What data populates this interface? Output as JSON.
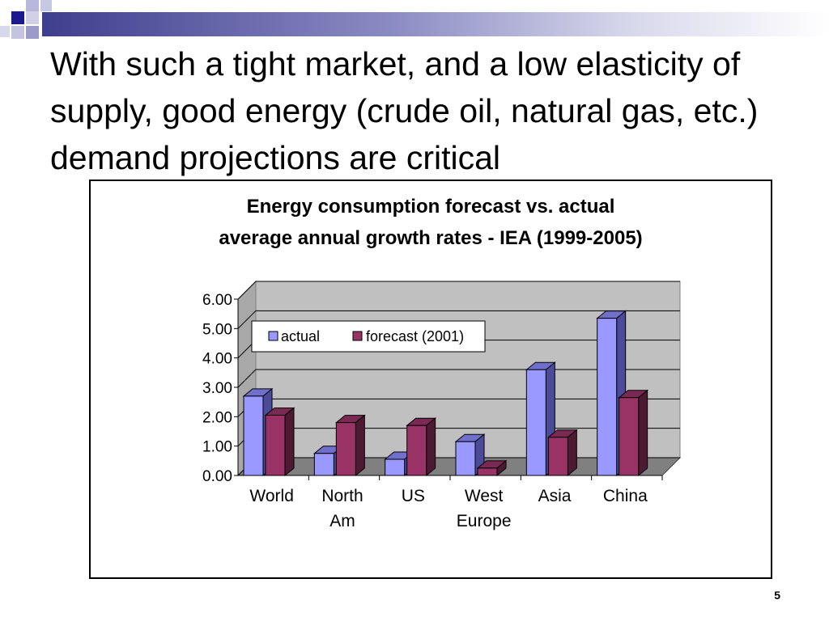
{
  "slide": {
    "title": "With such a tight market, and a low elasticity of supply, good energy (crude oil, natural gas, etc.) demand projections are critical",
    "page_number": "5"
  },
  "colors": {
    "actual": "#9999ff",
    "forecast": "#993366",
    "plot_bg": "#c0c0c0",
    "floor": "#808080"
  },
  "chart_data": {
    "type": "bar",
    "title_line1": "Energy consumption forecast vs. actual",
    "title_line2": "average annual growth rates - IEA (1999-2005)",
    "categories": [
      [
        "World"
      ],
      [
        "North",
        "Am"
      ],
      [
        "US"
      ],
      [
        "West",
        "Europe"
      ],
      [
        "Asia"
      ],
      [
        "China"
      ]
    ],
    "series": [
      {
        "name": "actual",
        "values": [
          2.7,
          0.75,
          0.55,
          1.15,
          3.6,
          5.35
        ]
      },
      {
        "name": "forecast (2001)",
        "values": [
          2.05,
          1.8,
          1.7,
          0.25,
          1.3,
          2.65
        ]
      }
    ],
    "ylim": [
      0,
      6
    ],
    "yticks": [
      "0.00",
      "1.00",
      "2.00",
      "3.00",
      "4.00",
      "5.00",
      "6.00"
    ],
    "grid": true,
    "legend_position": "top-left"
  }
}
